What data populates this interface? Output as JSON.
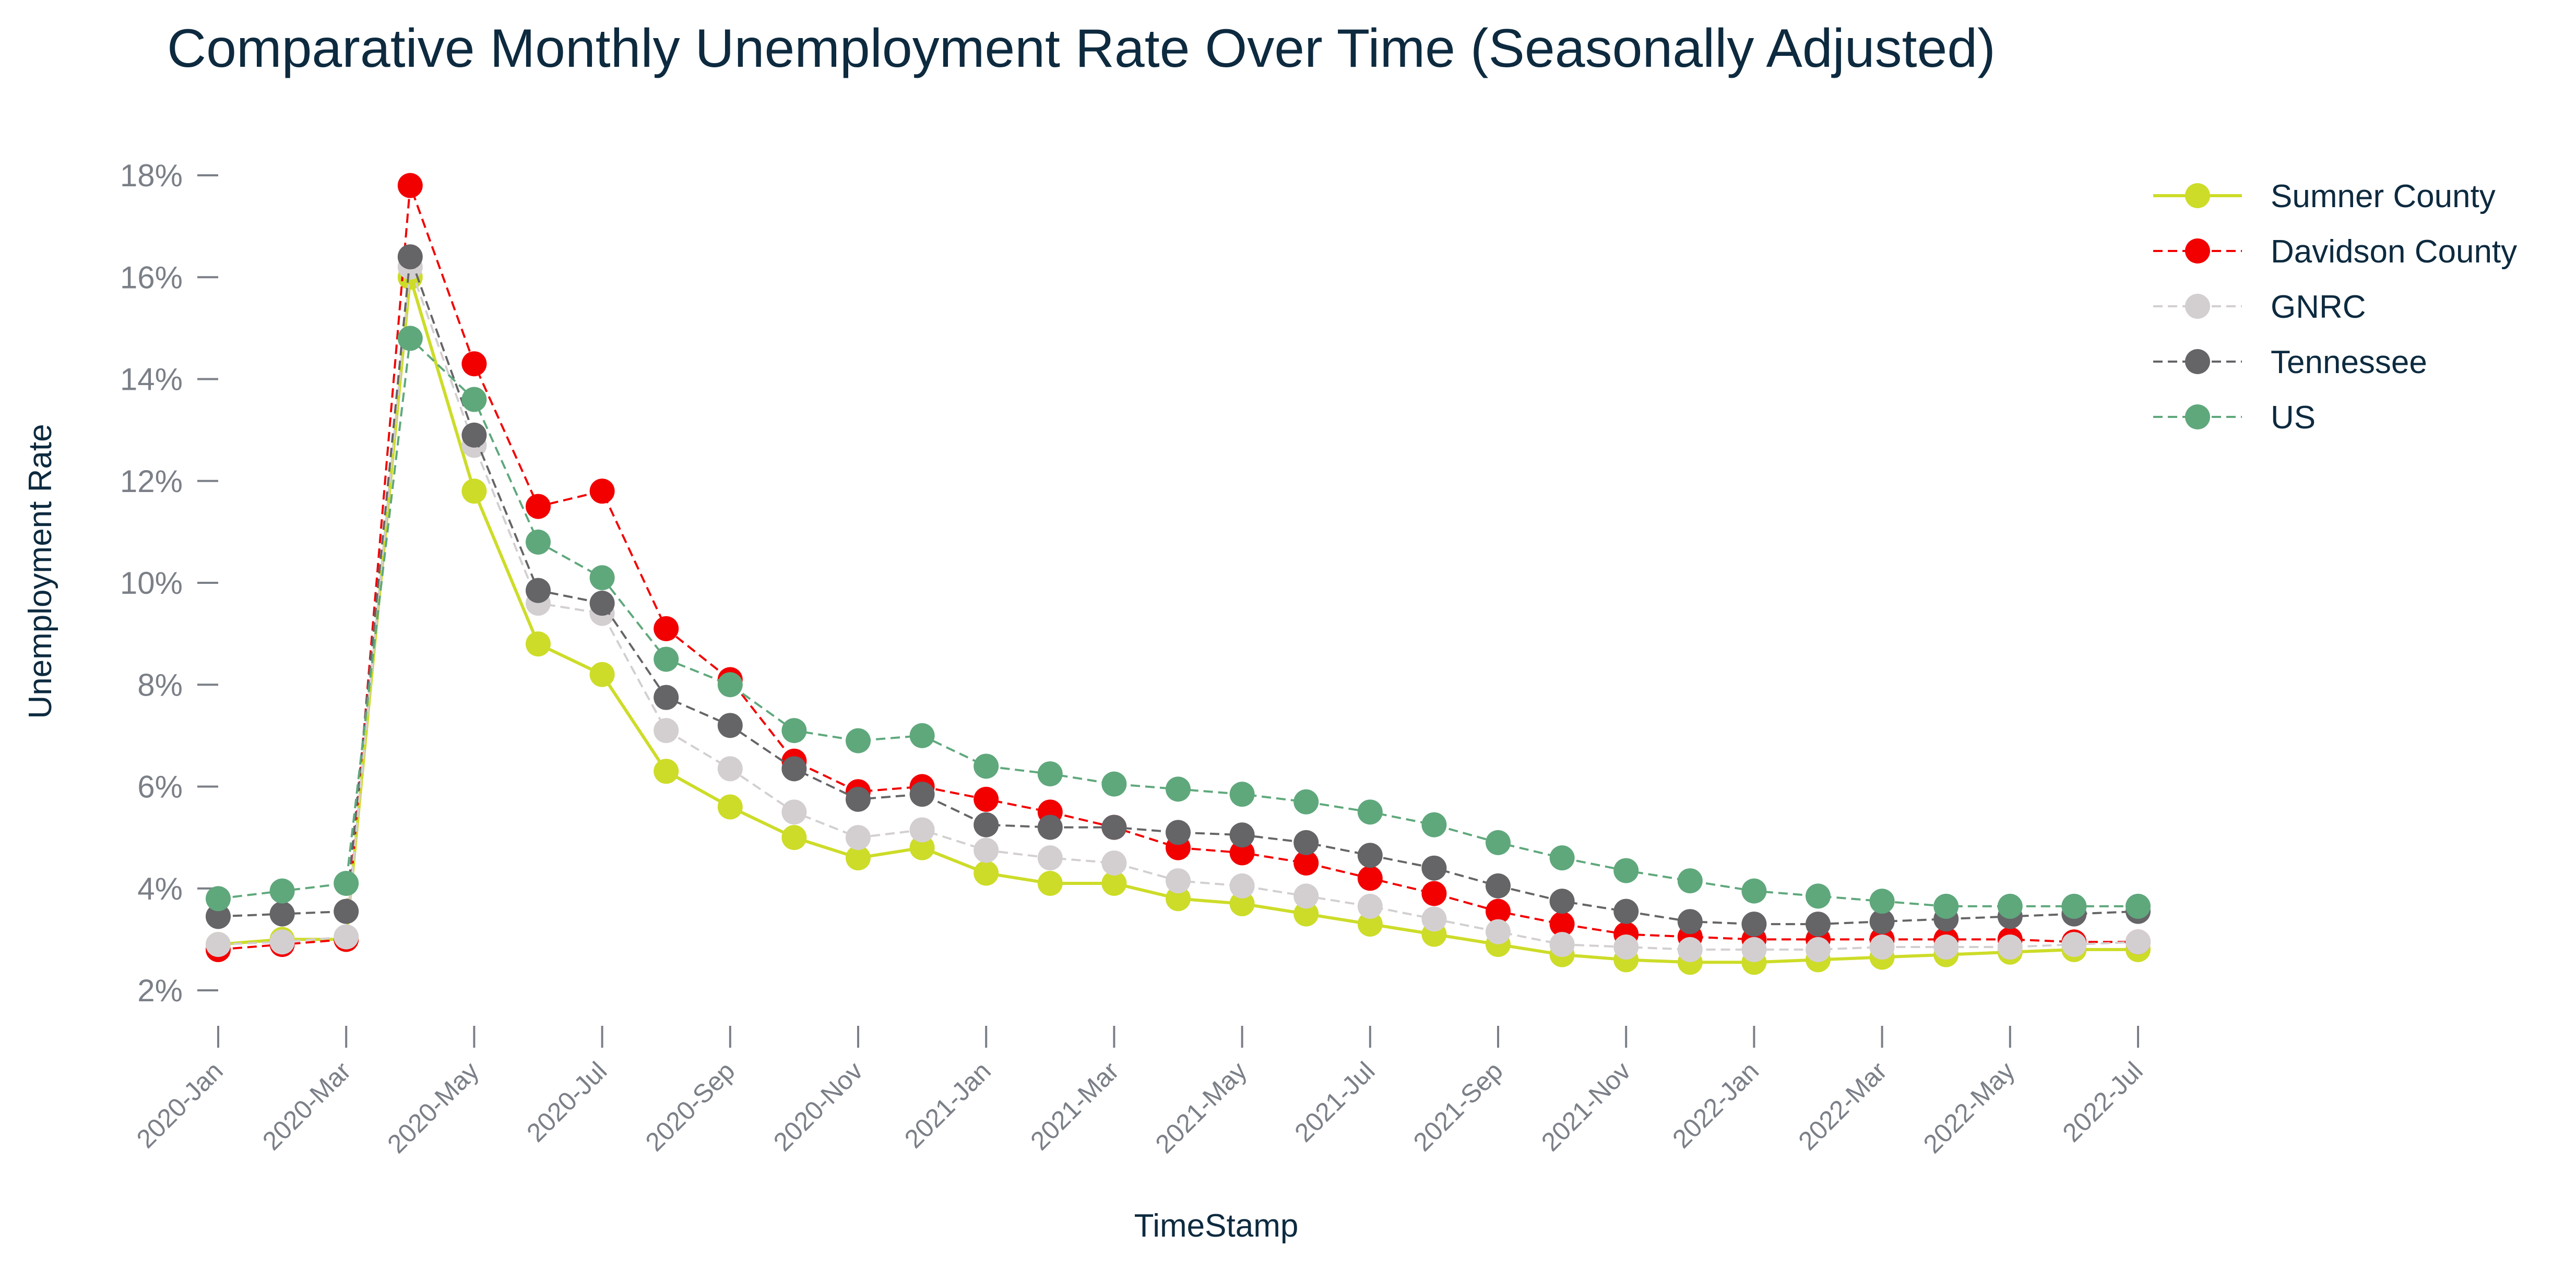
{
  "chart_data": {
    "type": "line",
    "title": "Comparative Monthly Unemployment Rate Over Time (Seasonally Adjusted)",
    "xlabel": "TimeStamp",
    "ylabel": "Unemployment Rate",
    "x": [
      "2020-Jan",
      "2020-Feb",
      "2020-Mar",
      "2020-Apr",
      "2020-May",
      "2020-Jun",
      "2020-Jul",
      "2020-Aug",
      "2020-Sep",
      "2020-Oct",
      "2020-Nov",
      "2020-Dec",
      "2021-Jan",
      "2021-Feb",
      "2021-Mar",
      "2021-Apr",
      "2021-May",
      "2021-Jun",
      "2021-Jul",
      "2021-Aug",
      "2021-Sep",
      "2021-Oct",
      "2021-Nov",
      "2021-Dec",
      "2022-Jan",
      "2022-Feb",
      "2022-Mar",
      "2022-Apr",
      "2022-May",
      "2022-Jun",
      "2022-Jul"
    ],
    "xtick_labels": [
      "2020-Jan",
      "2020-Mar",
      "2020-May",
      "2020-Jul",
      "2020-Sep",
      "2020-Nov",
      "2021-Jan",
      "2021-Mar",
      "2021-May",
      "2021-Jul",
      "2021-Sep",
      "2021-Nov",
      "2022-Jan",
      "2022-Mar",
      "2022-May",
      "2022-Jul"
    ],
    "ylim": [
      2,
      18
    ],
    "yticks": [
      2,
      4,
      6,
      8,
      10,
      12,
      14,
      16,
      18
    ],
    "ytick_labels": [
      "2%",
      "4%",
      "6%",
      "8%",
      "10%",
      "12%",
      "14%",
      "16%",
      "18%"
    ],
    "grid": false,
    "legend_position": "top-right",
    "series": [
      {
        "name": "Sumner County",
        "color": "#cddc28",
        "dash": "solid",
        "values": [
          2.9,
          3.0,
          3.0,
          16.0,
          11.8,
          8.8,
          8.2,
          6.3,
          5.6,
          5.0,
          4.6,
          4.8,
          4.3,
          4.1,
          4.1,
          3.8,
          3.7,
          3.5,
          3.3,
          3.1,
          2.9,
          2.7,
          2.6,
          2.55,
          2.55,
          2.6,
          2.65,
          2.7,
          2.75,
          2.8,
          2.8
        ]
      },
      {
        "name": "Davidson County",
        "color": "#f20000",
        "dash": "dashed",
        "values": [
          2.8,
          2.9,
          3.0,
          17.8,
          14.3,
          11.5,
          11.8,
          9.1,
          8.1,
          6.5,
          5.9,
          6.0,
          5.75,
          5.5,
          5.2,
          4.8,
          4.7,
          4.5,
          4.2,
          3.9,
          3.55,
          3.3,
          3.1,
          3.05,
          3.0,
          3.0,
          3.0,
          3.0,
          3.0,
          2.95,
          2.95
        ]
      },
      {
        "name": "GNRC",
        "color": "#d3cfd1",
        "dash": "dashed",
        "values": [
          2.9,
          2.95,
          3.05,
          16.2,
          12.7,
          9.6,
          9.4,
          7.1,
          6.35,
          5.5,
          5.0,
          5.15,
          4.75,
          4.6,
          4.5,
          4.15,
          4.05,
          3.85,
          3.65,
          3.4,
          3.15,
          2.9,
          2.85,
          2.8,
          2.8,
          2.8,
          2.85,
          2.85,
          2.85,
          2.9,
          2.95
        ]
      },
      {
        "name": "Tennessee",
        "color": "#656467",
        "dash": "dashed",
        "values": [
          3.45,
          3.5,
          3.55,
          16.4,
          12.9,
          9.85,
          9.6,
          7.75,
          7.2,
          6.35,
          5.75,
          5.85,
          5.25,
          5.2,
          5.2,
          5.1,
          5.05,
          4.9,
          4.65,
          4.4,
          4.05,
          3.75,
          3.55,
          3.35,
          3.3,
          3.3,
          3.35,
          3.4,
          3.45,
          3.5,
          3.55
        ]
      },
      {
        "name": "US",
        "color": "#5fa87c",
        "dash": "dashed",
        "values": [
          3.8,
          3.95,
          4.1,
          14.8,
          13.6,
          10.8,
          10.1,
          8.5,
          8.0,
          7.1,
          6.9,
          7.0,
          6.4,
          6.25,
          6.05,
          5.95,
          5.85,
          5.7,
          5.5,
          5.25,
          4.9,
          4.6,
          4.35,
          4.15,
          3.95,
          3.85,
          3.75,
          3.65,
          3.65,
          3.65,
          3.65
        ]
      }
    ]
  }
}
